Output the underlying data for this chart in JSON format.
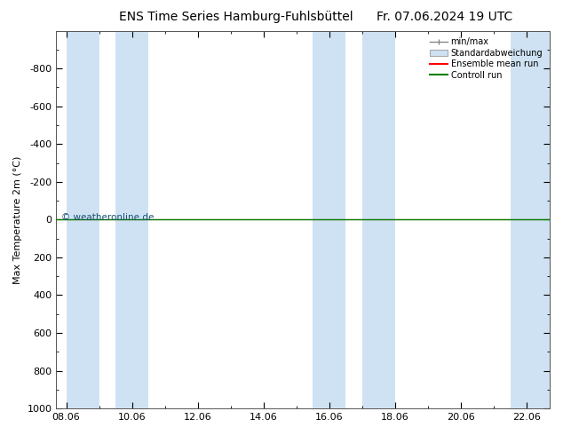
{
  "title_left": "ENS Time Series Hamburg-Fuhlsbüttel",
  "title_right": "Fr. 07.06.2024 19 UTC",
  "ylabel": "Max Temperature 2m (°C)",
  "ylim_bottom": 1000,
  "ylim_top": -1000,
  "yticks": [
    -800,
    -600,
    -400,
    -200,
    0,
    200,
    400,
    600,
    800,
    1000
  ],
  "ytick_labels": [
    "-800",
    "-600",
    "-400",
    "-200",
    "0",
    "200",
    "400",
    "600",
    "800",
    "1000"
  ],
  "xtick_labels": [
    "08.06",
    "10.06",
    "12.06",
    "14.06",
    "16.06",
    "18.06",
    "20.06",
    "22.06"
  ],
  "xtick_positions": [
    0,
    2,
    4,
    6,
    8,
    10,
    12,
    14
  ],
  "xlim": [
    -0.3,
    14.7
  ],
  "shaded_bands": [
    [
      0,
      1
    ],
    [
      1.5,
      2.5
    ],
    [
      7.5,
      8.5
    ],
    [
      9,
      10
    ],
    [
      13.5,
      14.7
    ]
  ],
  "shaded_color": "#cfe2f3",
  "control_run_y": 0,
  "control_run_color": "#008000",
  "ensemble_mean_color": "#ff0000",
  "background_color": "#ffffff",
  "plot_bg_color": "#ffffff",
  "title_fontsize": 10,
  "axis_fontsize": 8,
  "tick_fontsize": 8,
  "watermark_text": "© weatheronline.de",
  "watermark_color": "#1a5276",
  "legend_items": [
    "min/max",
    "Standardabweichung",
    "Ensemble mean run",
    "Controll run"
  ],
  "minmax_color": "#888888",
  "std_fill_color": "#cfe2f3",
  "std_edge_color": "#aaaaaa"
}
